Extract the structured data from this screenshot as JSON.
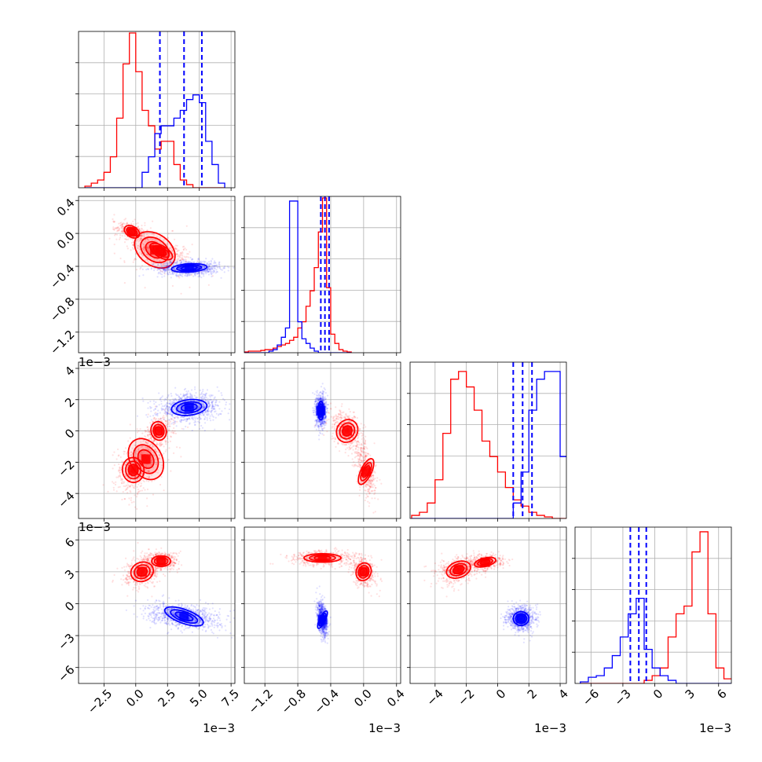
{
  "chart_data": {
    "type": "corner",
    "grid": true,
    "series": [
      {
        "name": "",
        "color": "#ff0000"
      },
      {
        "name": "",
        "color": "#0000ff"
      }
    ],
    "parameters": [
      {
        "range": [
          -4.5,
          7.8
        ],
        "ticks": [
          -2.5,
          0.0,
          2.5,
          5.0,
          7.5
        ],
        "tick_labels": [
          "−2.5",
          "0.0",
          "2.5",
          "5.0",
          "7.5"
        ],
        "offset_text": "1e−3"
      },
      {
        "range": [
          -1.45,
          0.45
        ],
        "ticks": [
          -1.2,
          -0.8,
          -0.4,
          0.0,
          0.4
        ],
        "tick_labels": [
          "−1.2",
          "−0.8",
          "−0.4",
          "0.0",
          "0.4"
        ],
        "offset_text": "1e−3"
      },
      {
        "range": [
          -5.6,
          4.4
        ],
        "ticks": [
          -4,
          -2,
          0,
          2,
          4
        ],
        "tick_labels": [
          "−4",
          "−2",
          "0",
          "2",
          "4"
        ],
        "offset_text": "1e−3"
      },
      {
        "range": [
          -7.5,
          7.2
        ],
        "ticks": [
          -6,
          -3,
          0,
          3,
          6
        ],
        "tick_labels": [
          "−6",
          "−3",
          "0",
          "3",
          "6"
        ],
        "offset_text": "1e−3"
      }
    ],
    "histograms": [
      {
        "param": 0,
        "bin_edges_step": 0.5,
        "bin_start": -4.0,
        "red": [
          0.01,
          0.03,
          0.05,
          0.1,
          0.2,
          0.45,
          0.8,
          1.0,
          0.75,
          0.5,
          0.4,
          0.25,
          0.3,
          0.3,
          0.15,
          0.05,
          0.02,
          0,
          0,
          0,
          0,
          0
        ],
        "blue": [
          0,
          0,
          0,
          0,
          0,
          0,
          0,
          0,
          0,
          0.1,
          0.2,
          0.35,
          0.4,
          0.4,
          0.45,
          0.5,
          0.57,
          0.6,
          0.55,
          0.3,
          0.15,
          0.03
        ],
        "quantile_lines": [
          1.9,
          3.8,
          5.2
        ]
      },
      {
        "param": 1,
        "bin_edges_step": 0.05,
        "bin_start": -1.45,
        "red": [
          0.005,
          0.01,
          0.01,
          0.01,
          0.015,
          0.02,
          0.02,
          0.03,
          0.04,
          0.05,
          0.06,
          0.08,
          0.1,
          0.16,
          0.2,
          0.3,
          0.4,
          0.55,
          0.78,
          1.0,
          0.42,
          0.12,
          0.06,
          0.02,
          0.01,
          0.005
        ],
        "blue": [
          0,
          0,
          0,
          0,
          0,
          0,
          0.01,
          0.02,
          0.05,
          0.1,
          0.16,
          0.98,
          0.98,
          0.2,
          0.09,
          0.06,
          0.03,
          0.01,
          0,
          0,
          0,
          0,
          0,
          0,
          0,
          0
        ],
        "quantile_lines": [
          -0.52,
          -0.47,
          -0.42
        ]
      },
      {
        "param": 2,
        "bin_edges_step": 0.5,
        "bin_start": -5.5,
        "red": [
          0.02,
          0.04,
          0.1,
          0.25,
          0.55,
          0.9,
          0.95,
          0.85,
          0.7,
          0.5,
          0.4,
          0.3,
          0.2,
          0.12,
          0.08,
          0.04,
          0.02,
          0.01,
          0,
          0
        ],
        "blue": [
          0,
          0,
          0,
          0,
          0,
          0,
          0,
          0,
          0,
          0,
          0,
          0,
          0,
          0.1,
          0.3,
          0.7,
          0.9,
          0.95,
          0.95,
          0.4,
          0.12,
          0.04
        ],
        "quantile_lines": [
          1.0,
          1.6,
          2.2
        ]
      },
      {
        "param": 3,
        "bin_edges_step": 0.75,
        "bin_start": -7.0,
        "red": [
          0,
          0,
          0,
          0,
          0,
          0,
          0,
          0,
          0.02,
          0.05,
          0.1,
          0.3,
          0.45,
          0.5,
          0.85,
          0.98,
          0.45,
          0.1,
          0.03,
          0.01
        ],
        "blue": [
          0.01,
          0.04,
          0.05,
          0.1,
          0.18,
          0.3,
          0.45,
          0.55,
          0.22,
          0.1,
          0.05,
          0.02,
          0,
          0,
          0,
          0,
          0,
          0,
          0,
          0
        ],
        "quantile_lines": [
          -2.3,
          -1.5,
          -0.8
        ]
      }
    ],
    "blobs_2d": [
      {
        "x": 0,
        "y": 1,
        "red": [
          [
            -0.3,
            0.02,
            1.3,
            0.13,
            -0.5
          ],
          [
            2.0,
            -0.22,
            2.0,
            0.14,
            -0.5
          ],
          [
            1.5,
            -0.2,
            3.5,
            0.38,
            -0.6
          ]
        ],
        "blue": [
          [
            4.2,
            -0.42,
            2.8,
            0.1,
            0.05
          ]
        ]
      },
      {
        "x": 0,
        "y": 2,
        "red": [
          [
            -0.2,
            -2.5,
            1.7,
            1.6,
            0.1
          ],
          [
            1.8,
            0.0,
            1.2,
            1.2,
            0.2
          ],
          [
            0.8,
            -1.8,
            2.5,
            2.8,
            0.5
          ]
        ],
        "blue": [
          [
            4.2,
            1.5,
            2.8,
            1.0,
            0.1
          ]
        ]
      },
      {
        "x": 0,
        "y": 3,
        "red": [
          [
            0.5,
            3.0,
            1.8,
            1.8,
            0.3
          ],
          [
            2.0,
            4.0,
            1.5,
            1.0,
            0.0
          ]
        ],
        "blue": [
          [
            3.8,
            -1.2,
            3.2,
            1.3,
            -0.3
          ]
        ]
      },
      {
        "x": 1,
        "y": 2,
        "red": [
          [
            0.03,
            -2.6,
            0.13,
            1.8,
            -0.4
          ],
          [
            -0.2,
            0.0,
            0.25,
            1.5,
            -0.5
          ]
        ],
        "blue": [
          [
            -0.52,
            1.3,
            0.07,
            1.2,
            0.0
          ]
        ]
      },
      {
        "x": 1,
        "y": 3,
        "red": [
          [
            0.0,
            3.0,
            0.18,
            1.7,
            -0.3
          ],
          [
            -0.5,
            4.3,
            0.45,
            0.8,
            0.0
          ]
        ],
        "blue": [
          [
            -0.5,
            -1.5,
            0.07,
            1.8,
            -0.4
          ]
        ]
      },
      {
        "x": 2,
        "y": 3,
        "red": [
          [
            -2.5,
            3.2,
            1.6,
            1.5,
            0.3
          ],
          [
            -0.8,
            3.9,
            1.4,
            0.8,
            0.2
          ]
        ],
        "blue": [
          [
            1.5,
            -1.4,
            1.0,
            1.3,
            0.0
          ]
        ]
      }
    ]
  }
}
